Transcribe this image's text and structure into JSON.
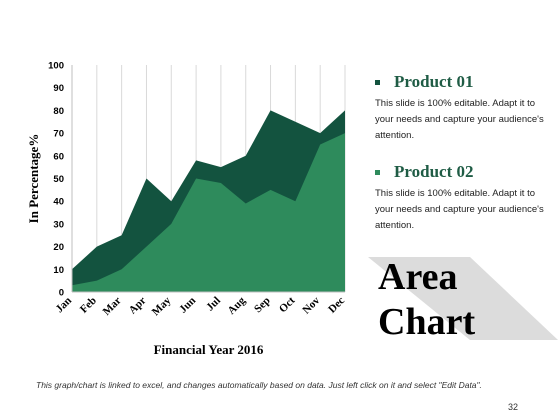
{
  "chart_data": {
    "type": "area",
    "categories": [
      "Jan",
      "Feb",
      "Mar",
      "Apr",
      "May",
      "Jun",
      "Jul",
      "Aug",
      "Sep",
      "Oct",
      "Nov",
      "Dec"
    ],
    "series": [
      {
        "name": "Product 01",
        "values": [
          10,
          20,
          25,
          50,
          40,
          58,
          55,
          60,
          80,
          75,
          70,
          80
        ],
        "color": "#13533f"
      },
      {
        "name": "Product 02",
        "values": [
          3,
          5,
          10,
          20,
          30,
          50,
          48,
          39,
          45,
          40,
          65,
          70
        ],
        "color": "#2e8b5c"
      }
    ],
    "xlabel": "Financial Year 2016",
    "ylabel": "In Percentage%",
    "ylim": [
      0,
      100
    ],
    "yticks": [
      0,
      10,
      20,
      30,
      40,
      50,
      60,
      70,
      80,
      90,
      100
    ],
    "grid": "vertical",
    "legend": "right"
  },
  "legend": {
    "items": [
      {
        "title": "Product 01",
        "description": "This slide is 100% editable. Adapt it to your needs and capture your audience's attention.",
        "bullet_color": "#13533f"
      },
      {
        "title": "Product 02",
        "description": "This slide is 100% editable. Adapt it to your needs and capture your audience's attention.",
        "bullet_color": "#2e8b5c"
      }
    ]
  },
  "heading": {
    "line1": "Area",
    "line2": "Chart"
  },
  "footer": "This graph/chart is linked to excel, and changes automatically based on data. Just left click on it and select \"Edit Data\".",
  "page_number": "32",
  "colors": {
    "banner": "#dcdcdc",
    "grid": "#d9d9d9"
  }
}
